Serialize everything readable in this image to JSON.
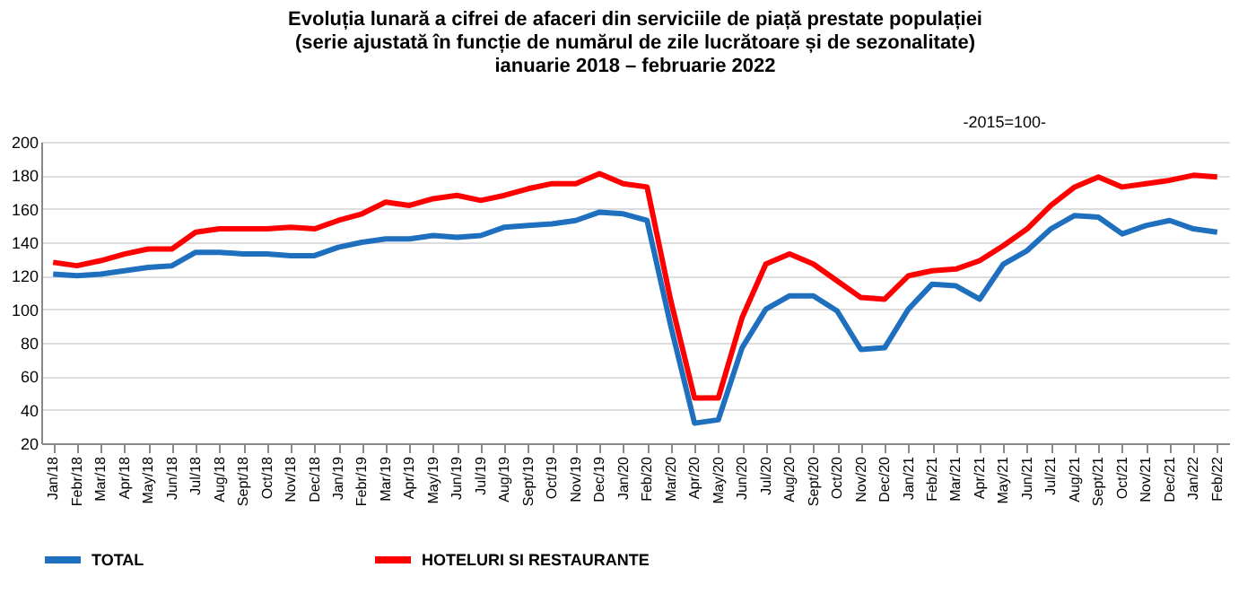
{
  "chart_data": {
    "type": "line",
    "title": [
      "Evoluția lunară a cifrei de afaceri din serviciile de piață prestate populației",
      "(serie ajustată în funcție de numărul de zile lucrătoare și de sezonalitate)",
      "ianuarie 2018 – februarie 2022"
    ],
    "annotations": [
      "-2015=100-"
    ],
    "categories": [
      "Jan/18",
      "Febr/18",
      "Mar/18",
      "Apr/18",
      "May/18",
      "Jun/18",
      "Jul/18",
      "Aug/18",
      "Sept/18",
      "Oct/18",
      "Nov/18",
      "Dec/18",
      "Jan/19",
      "Febr/19",
      "Mar/19",
      "Apr/19",
      "May/19",
      "Jun/19",
      "Jul/19",
      "Aug/19",
      "Sept/19",
      "Oct/19",
      "Nov/19",
      "Dec/19",
      "Jan/20",
      "Feb/20",
      "Mar/20",
      "Apr/20",
      "May/20",
      "Jun/20",
      "Jul/20",
      "Aug/20",
      "Sept/20",
      "Oct/20",
      "Nov/20",
      "Dec/20",
      "Jan/21",
      "Feb/21",
      "Mar/21",
      "Apr/21",
      "May/21",
      "Jun/21",
      "Jul/21",
      "Aug/21",
      "Sept/21",
      "Oct/21",
      "Nov/21",
      "Dec/21",
      "Jan/22",
      "Feb/22"
    ],
    "series": [
      {
        "name": "TOTAL",
        "color": "#1f6fbf",
        "values": [
          121,
          120,
          121,
          123,
          125,
          126,
          134,
          134,
          133,
          133,
          132,
          132,
          137,
          140,
          142,
          142,
          144,
          143,
          144,
          149,
          150,
          151,
          153,
          158,
          157,
          153,
          90,
          32,
          34,
          77,
          100,
          108,
          108,
          99,
          76,
          77,
          100,
          115,
          114,
          106,
          127,
          135,
          148,
          156,
          155,
          145,
          150,
          153,
          148,
          146
        ]
      },
      {
        "name": "HOTELURI SI RESTAURANTE",
        "color": "#ff0000",
        "values": [
          128,
          126,
          129,
          133,
          136,
          136,
          146,
          148,
          148,
          148,
          149,
          148,
          153,
          157,
          164,
          162,
          166,
          168,
          165,
          168,
          172,
          175,
          175,
          181,
          175,
          173,
          105,
          47,
          47,
          95,
          127,
          133,
          127,
          117,
          107,
          106,
          120,
          123,
          124,
          129,
          138,
          148,
          162,
          173,
          179,
          173,
          175,
          177,
          180,
          179
        ]
      }
    ],
    "ylim": [
      20,
      200
    ],
    "yticks": [
      20,
      40,
      60,
      80,
      100,
      120,
      140,
      160,
      180,
      200
    ],
    "grid": "y",
    "legend": "bottom",
    "line_style": "solid",
    "marker": "none"
  }
}
